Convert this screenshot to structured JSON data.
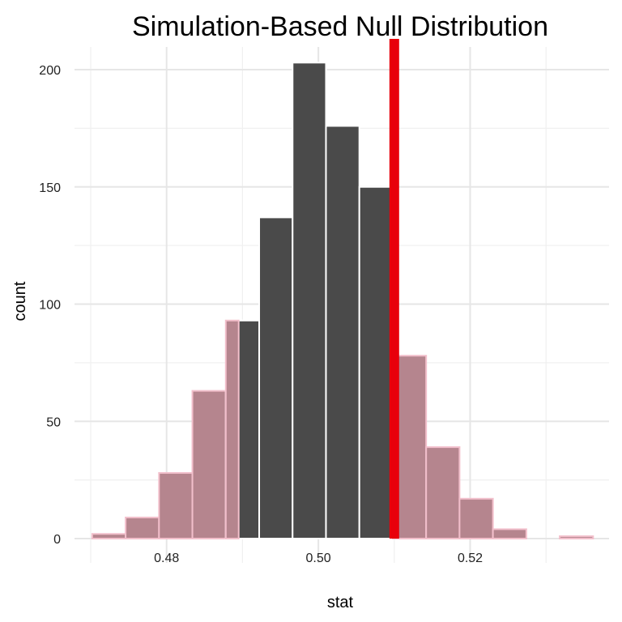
{
  "chart_data": {
    "type": "bar",
    "title": "Simulation-Based Null Distribution",
    "xlabel": "stat",
    "ylabel": "count",
    "xlim": [
      0.47,
      0.5367
    ],
    "ylim": [
      0,
      210
    ],
    "x_ticks": [
      "0.48",
      "0.50",
      "0.52"
    ],
    "x_tick_values": [
      0.48,
      0.5,
      0.52
    ],
    "y_ticks": [
      "0",
      "50",
      "100",
      "150",
      "200"
    ],
    "y_tick_values": [
      0,
      50,
      100,
      150,
      200
    ],
    "grid": true,
    "bin_width": 0.0044,
    "bins": [
      {
        "x": 0.4724,
        "count": 2,
        "shaded": true
      },
      {
        "x": 0.4768,
        "count": 9,
        "shaded": true
      },
      {
        "x": 0.4812,
        "count": 28,
        "shaded": true
      },
      {
        "x": 0.4856,
        "count": 63,
        "shaded": true
      },
      {
        "x": 0.49,
        "count": 93,
        "shaded": true,
        "shade_until": 0.4895
      },
      {
        "x": 0.4944,
        "count": 137,
        "shaded": false
      },
      {
        "x": 0.4988,
        "count": 203,
        "shaded": false
      },
      {
        "x": 0.5032,
        "count": 176,
        "shaded": false
      },
      {
        "x": 0.5076,
        "count": 150,
        "shaded": false
      },
      {
        "x": 0.512,
        "count": 78,
        "shaded": true
      },
      {
        "x": 0.5164,
        "count": 39,
        "shaded": true
      },
      {
        "x": 0.5208,
        "count": 17,
        "shaded": true
      },
      {
        "x": 0.5252,
        "count": 4,
        "shaded": true
      },
      {
        "x": 0.5296,
        "count": 0,
        "shaded": true
      },
      {
        "x": 0.534,
        "count": 1,
        "shaded": true
      }
    ],
    "observed_stat": 0.51,
    "colors": {
      "bar": "#4a4a4a",
      "shaded_region": "#b5858e",
      "shaded_border": "#f2bfcb",
      "bar_border": "#ffffff",
      "observed_line": "#e8000b",
      "grid_major": "#e6e6e6",
      "grid_minor": "#f0f0f0"
    }
  }
}
